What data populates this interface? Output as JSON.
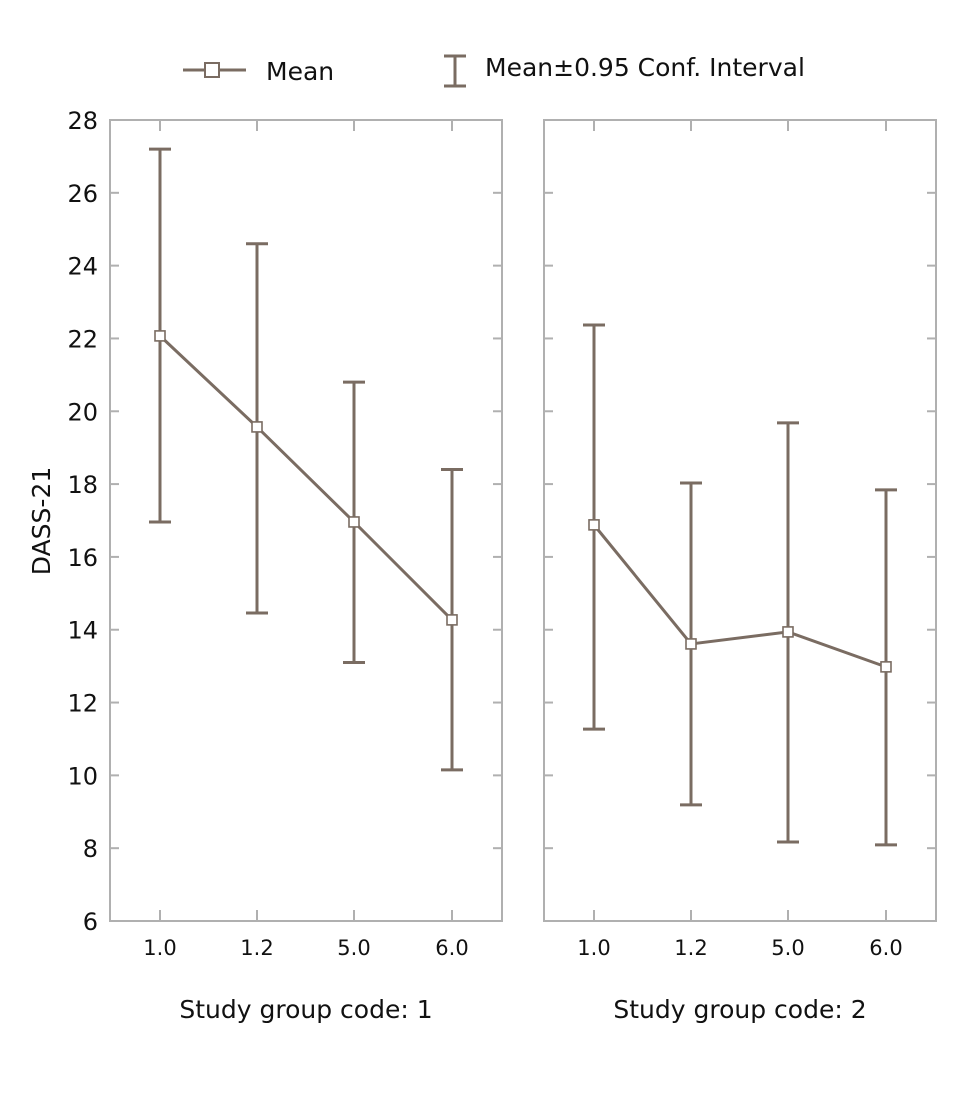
{
  "chart_data": {
    "type": "line",
    "title": "",
    "ylabel": "DASS-21",
    "ylim": [
      6,
      28
    ],
    "yticks": [
      6,
      8,
      10,
      12,
      14,
      16,
      18,
      20,
      22,
      24,
      26,
      28
    ],
    "categories": [
      "1.0",
      "1.2",
      "5.0",
      "6.0"
    ],
    "grid": false,
    "legend": {
      "position": "top",
      "entries": [
        {
          "label": "Mean",
          "marker": "open-square-line"
        },
        {
          "label": "Mean±0.95 Conf. Interval",
          "marker": "error-bar"
        }
      ]
    },
    "colors": {
      "series": "#7a6c62",
      "axis": "#b0b0b0",
      "text": "#111111"
    },
    "panels": [
      {
        "xlabel": "Study group code: 1",
        "mean": [
          22.07,
          19.57,
          16.96,
          14.27
        ],
        "ci_upper": [
          27.2,
          24.6,
          20.8,
          18.4
        ],
        "ci_lower": [
          16.96,
          14.46,
          13.1,
          10.15
        ]
      },
      {
        "xlabel": "Study group code: 2",
        "mean": [
          16.88,
          13.61,
          13.94,
          12.98
        ],
        "ci_upper": [
          22.37,
          18.03,
          19.68,
          17.84
        ],
        "ci_lower": [
          11.27,
          9.19,
          8.17,
          8.09
        ]
      }
    ]
  }
}
